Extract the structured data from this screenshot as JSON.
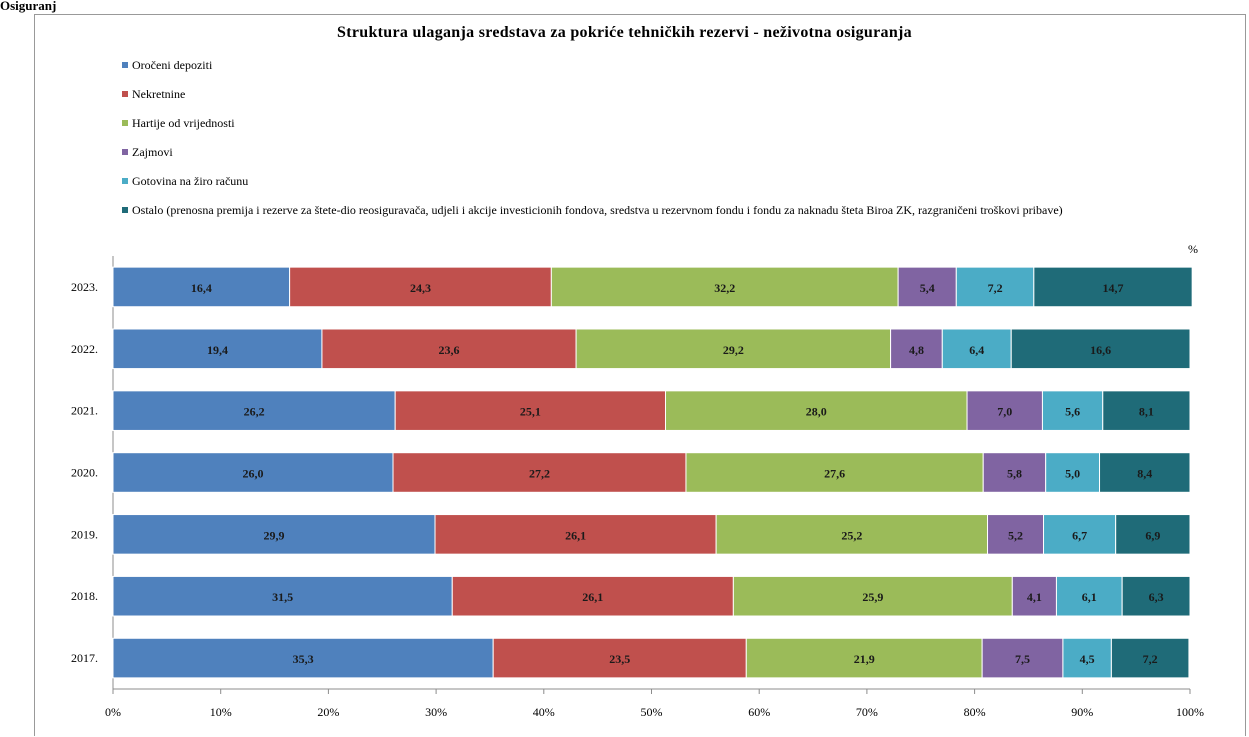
{
  "header": {
    "corner_label": "Osiguranj"
  },
  "chart_data": {
    "type": "bar",
    "orientation": "horizontal",
    "stacked": "percent",
    "title": "Struktura ulaganja sredstava za pokriće tehničkih rezervi - neživotna osiguranja",
    "unit_label": "%",
    "categories": [
      "2023.",
      "2022.",
      "2021.",
      "2020.",
      "2019.",
      "2018.",
      "2017."
    ],
    "xlim": [
      0,
      100
    ],
    "xticks": [
      "0%",
      "10%",
      "20%",
      "30%",
      "40%",
      "50%",
      "60%",
      "70%",
      "80%",
      "90%",
      "100%"
    ],
    "legend_position": "top",
    "grid": false,
    "series": [
      {
        "name": "Oročeni depoziti",
        "color": "#4f81bd",
        "values": [
          16.4,
          19.4,
          26.2,
          26.0,
          29.9,
          31.5,
          35.3
        ],
        "labels": [
          "16,4",
          "19,4",
          "26,2",
          "26,0",
          "29,9",
          "31,5",
          "35,3"
        ]
      },
      {
        "name": "Nekretnine",
        "color": "#c0504d",
        "values": [
          24.3,
          23.6,
          25.1,
          27.2,
          26.1,
          26.1,
          23.5
        ],
        "labels": [
          "24,3",
          "23,6",
          "25,1",
          "27,2",
          "26,1",
          "26,1",
          "23,5"
        ]
      },
      {
        "name": "Hartije od vrijednosti",
        "color": "#9bbb59",
        "values": [
          32.2,
          29.2,
          28.0,
          27.6,
          25.2,
          25.9,
          21.9
        ],
        "labels": [
          "32,2",
          "29,2",
          "28,0",
          "27,6",
          "25,2",
          "25,9",
          "21,9"
        ]
      },
      {
        "name": "Zajmovi",
        "color": "#8064a2",
        "values": [
          5.4,
          4.8,
          7.0,
          5.8,
          5.2,
          4.1,
          7.5
        ],
        "labels": [
          "5,4",
          "4,8",
          "7,0",
          "5,8",
          "5,2",
          "4,1",
          "7,5"
        ]
      },
      {
        "name": "Gotovina na žiro računu",
        "color": "#4bacc6",
        "values": [
          7.2,
          6.4,
          5.6,
          5.0,
          6.7,
          6.1,
          4.5
        ],
        "labels": [
          "7,2",
          "6,4",
          "5,6",
          "5,0",
          "6,7",
          "6,1",
          "4,5"
        ]
      },
      {
        "name": "Ostalo (prenosna premija i rezerve za štete-dio reosiguravača, udjeli i akcije investicionih fondova, sredstva u rezervnom fondu i fondu za naknadu šteta Biroa ZK, razgraničeni troškovi pribave)",
        "color": "#1f6b78",
        "values": [
          14.7,
          16.6,
          8.1,
          8.4,
          6.9,
          6.3,
          7.2
        ],
        "labels": [
          "14,7",
          "16,6",
          "8,1",
          "8,4",
          "6,9",
          "6,3",
          "7,2"
        ]
      }
    ]
  }
}
